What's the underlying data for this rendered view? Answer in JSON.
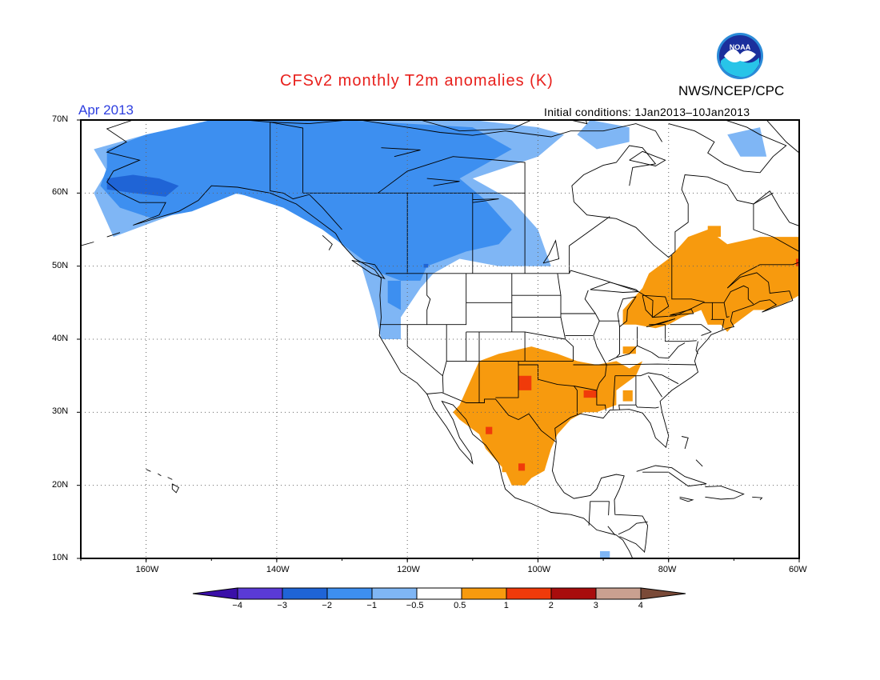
{
  "title": "CFSv2 monthly T2m anomalies (K)",
  "agency": "NWS/NCEP/CPC",
  "logo_text": "NOAA",
  "valid_month": "Apr 2013",
  "initial_conditions": "Initial conditions: 1Jan2013–10Jan2013",
  "lat_labels": [
    "70N",
    "60N",
    "50N",
    "40N",
    "30N",
    "20N",
    "10N"
  ],
  "lon_labels": [
    "160W",
    "140W",
    "120W",
    "100W",
    "80W",
    "60W"
  ],
  "colorbar": {
    "ticks": [
      "−4",
      "−3",
      "−2",
      "−1",
      "−0.5",
      "0.5",
      "1",
      "2",
      "3",
      "4"
    ],
    "colors": [
      "#3a0fa8",
      "#5a3ad6",
      "#1f64d6",
      "#3d8ff0",
      "#7fb6f5",
      "#ffffff",
      "#f79a0e",
      "#f03a0a",
      "#a80d0d",
      "#c9a090",
      "#7a4a38"
    ]
  },
  "colors": {
    "title": "#e8201c",
    "month": "#2f40e0",
    "cold_1": "#7fb6f5",
    "cold_2": "#3d8ff0",
    "cold_3": "#1f64d6",
    "warm_1": "#f79a0e",
    "warm_2": "#f03a0a"
  }
}
